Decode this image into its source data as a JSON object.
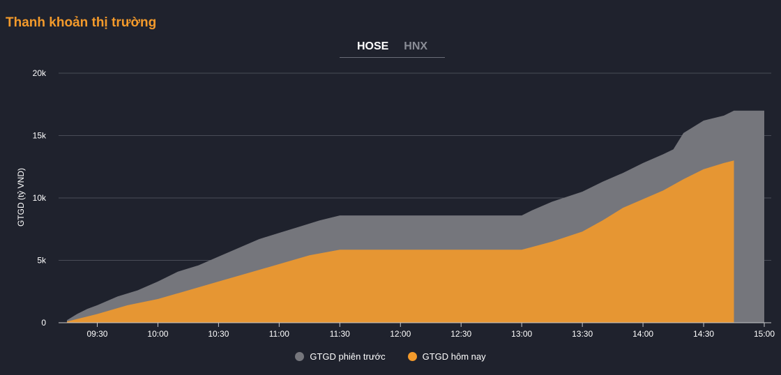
{
  "title": "Thanh khoản thị trường",
  "tabs": [
    {
      "label": "HOSE",
      "active": true
    },
    {
      "label": "HNX",
      "active": false
    }
  ],
  "legend": [
    {
      "label": "GTGD phiên trước",
      "color": "#75767c"
    },
    {
      "label": "GTGD hôm nay",
      "color": "#f39a2b"
    }
  ],
  "chart_data": {
    "type": "area",
    "ylabel": "GTGD (tỷ VND)",
    "ylim": [
      0,
      20000
    ],
    "yticks": [
      0,
      5000,
      10000,
      15000,
      20000
    ],
    "yticklabels": [
      "0",
      "5k",
      "10k",
      "15k",
      "20k"
    ],
    "xlim": [
      "09:15",
      "15:00"
    ],
    "xticks": [
      "09:30",
      "10:00",
      "10:30",
      "11:00",
      "11:30",
      "12:00",
      "12:30",
      "13:00",
      "13:30",
      "14:00",
      "14:30",
      "15:00"
    ],
    "grid": true,
    "legend_position": "bottom",
    "series": [
      {
        "name": "GTGD phiên trước",
        "color": "#75767c",
        "points": [
          [
            "09:15",
            200
          ],
          [
            "09:20",
            700
          ],
          [
            "09:25",
            1100
          ],
          [
            "09:30",
            1400
          ],
          [
            "09:40",
            2100
          ],
          [
            "09:50",
            2600
          ],
          [
            "10:00",
            3300
          ],
          [
            "10:10",
            4100
          ],
          [
            "10:20",
            4600
          ],
          [
            "10:30",
            5300
          ],
          [
            "10:40",
            6000
          ],
          [
            "10:50",
            6700
          ],
          [
            "11:00",
            7200
          ],
          [
            "11:10",
            7700
          ],
          [
            "11:20",
            8200
          ],
          [
            "11:30",
            8600
          ],
          [
            "12:00",
            8600
          ],
          [
            "12:30",
            8600
          ],
          [
            "13:00",
            8600
          ],
          [
            "13:05",
            9000
          ],
          [
            "13:15",
            9700
          ],
          [
            "13:30",
            10500
          ],
          [
            "13:40",
            11300
          ],
          [
            "13:50",
            12000
          ],
          [
            "14:00",
            12800
          ],
          [
            "14:10",
            13500
          ],
          [
            "14:15",
            13900
          ],
          [
            "14:20",
            15200
          ],
          [
            "14:30",
            16200
          ],
          [
            "14:40",
            16600
          ],
          [
            "14:45",
            17000
          ],
          [
            "15:00",
            17000
          ]
        ]
      },
      {
        "name": "GTGD hôm nay",
        "color": "#f39a2b",
        "points": [
          [
            "09:15",
            100
          ],
          [
            "09:30",
            700
          ],
          [
            "09:45",
            1400
          ],
          [
            "10:00",
            1900
          ],
          [
            "10:15",
            2600
          ],
          [
            "10:30",
            3300
          ],
          [
            "10:45",
            4000
          ],
          [
            "11:00",
            4700
          ],
          [
            "11:15",
            5400
          ],
          [
            "11:30",
            5850
          ],
          [
            "12:00",
            5850
          ],
          [
            "12:30",
            5850
          ],
          [
            "13:00",
            5850
          ],
          [
            "13:15",
            6500
          ],
          [
            "13:30",
            7300
          ],
          [
            "13:40",
            8200
          ],
          [
            "13:50",
            9200
          ],
          [
            "14:00",
            9900
          ],
          [
            "14:10",
            10600
          ],
          [
            "14:20",
            11500
          ],
          [
            "14:30",
            12300
          ],
          [
            "14:40",
            12800
          ],
          [
            "14:45",
            13000
          ]
        ]
      }
    ]
  }
}
